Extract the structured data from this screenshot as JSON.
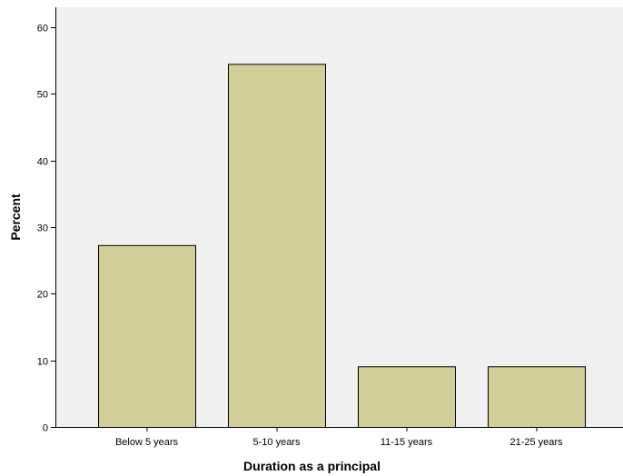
{
  "chart_data": {
    "type": "bar",
    "title": "",
    "xlabel": "Duration as a principal",
    "ylabel": "Percent",
    "categories": [
      "Below 5 years",
      "5-10 years",
      "11-15 years",
      "21-25 years"
    ],
    "values": [
      27.3,
      54.5,
      9.1,
      9.1
    ],
    "ylim": [
      0,
      63
    ],
    "yticks": [
      0,
      10,
      20,
      30,
      40,
      50,
      60
    ],
    "grid": false,
    "legend": "none",
    "colors": {
      "plot_background": "#f0f0f0",
      "bar_fill": "#d3ce97",
      "bar_stroke": "#000000"
    }
  }
}
